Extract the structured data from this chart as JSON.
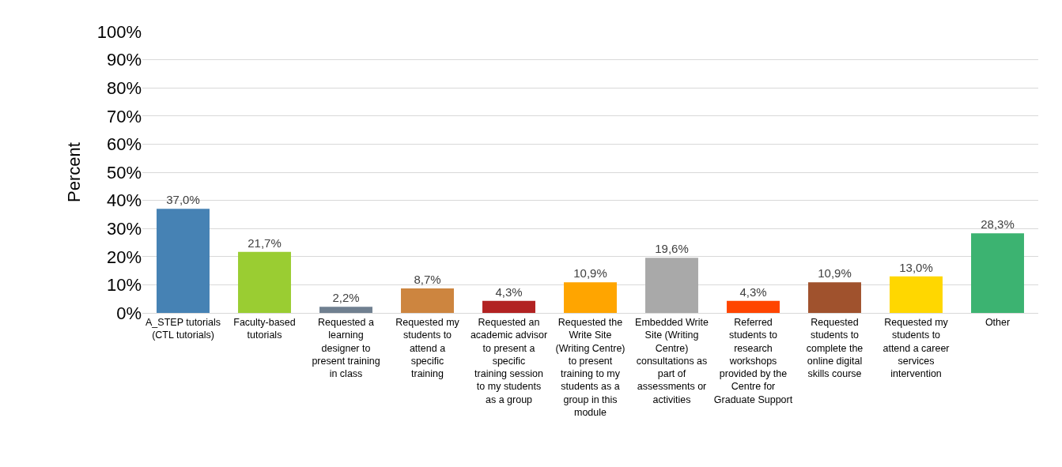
{
  "chart_data": {
    "type": "bar",
    "ylabel": "Percent",
    "categories": [
      "A_STEP tutorials (CTL tutorials)",
      "Faculty-based tutorials",
      "Requested a learning designer to present training in class",
      "Requested my students to attend a specific training",
      "Requested an academic advisor to present a specific training session to my students as a group",
      "Requested the Write Site (Writing Centre) to present training to my students as a group in this module",
      "Embedded Write Site (Writing Centre) consultations as part of assessments or activities",
      "Referred students to research workshops provided by the Centre for Graduate Support",
      "Requested students to complete the online digital skills course",
      "Requested my students to attend a career services intervention",
      "Other"
    ],
    "values": [
      37.0,
      21.7,
      2.2,
      8.7,
      4.3,
      10.9,
      19.6,
      4.3,
      10.9,
      13.0,
      28.3
    ],
    "value_labels": [
      "37,0%",
      "21,7%",
      "2,2%",
      "8,7%",
      "4,3%",
      "10,9%",
      "19,6%",
      "4,3%",
      "10,9%",
      "13,0%",
      "28,3%"
    ],
    "colors": [
      "#4682b4",
      "#9acd32",
      "#708090",
      "#cd853f",
      "#b22222",
      "#ffa500",
      "#a9a9a9",
      "#ff4500",
      "#a0522d",
      "#ffd700",
      "#3cb371"
    ],
    "ylim": [
      0,
      100
    ],
    "yticks": [
      {
        "value": 0,
        "label": "0%"
      },
      {
        "value": 10,
        "label": "10%"
      },
      {
        "value": 20,
        "label": "20%"
      },
      {
        "value": 30,
        "label": "30%"
      },
      {
        "value": 40,
        "label": "40%"
      },
      {
        "value": 50,
        "label": "50%"
      },
      {
        "value": 60,
        "label": "60%"
      },
      {
        "value": 70,
        "label": "70%"
      },
      {
        "value": 80,
        "label": "80%"
      },
      {
        "value": 90,
        "label": "90%"
      },
      {
        "value": 100,
        "label": "100%"
      }
    ],
    "grid": "y"
  }
}
